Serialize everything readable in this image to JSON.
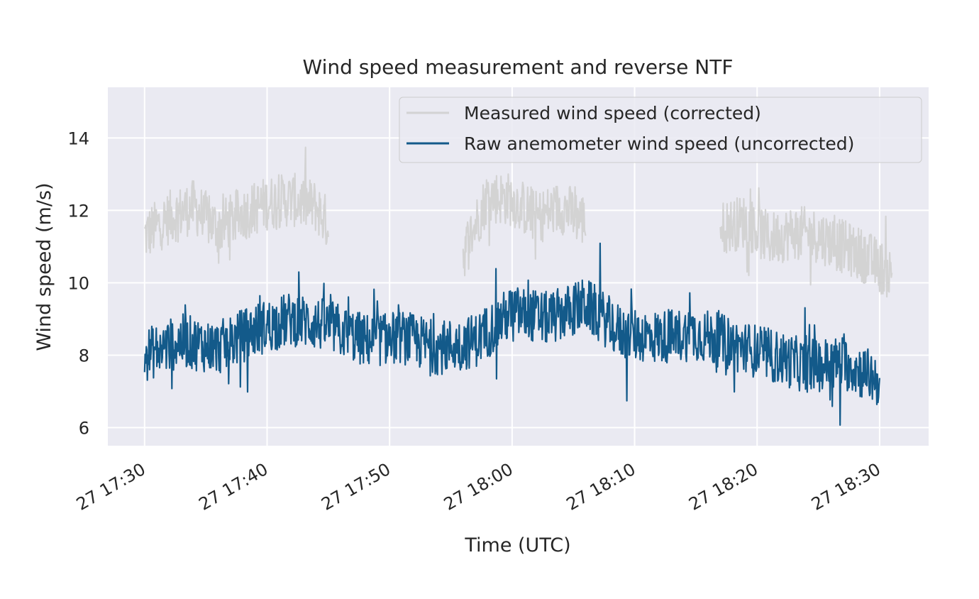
{
  "chart_data": {
    "type": "line",
    "title": "Wind speed measurement and reverse NTF",
    "xlabel": "Time (UTC)",
    "ylabel": "Wind speed (m/s)",
    "x_range": [
      "27 17:27",
      "27 18:34"
    ],
    "ylim": [
      5.5,
      15.4
    ],
    "x_ticks": [
      "27 17:30",
      "27 17:40",
      "27 17:50",
      "27 18:00",
      "27 18:10",
      "27 18:20",
      "27 18:30"
    ],
    "y_ticks": [
      6,
      8,
      10,
      12,
      14
    ],
    "grid": true,
    "legend_position": "upper right",
    "background": "#eaeaf2",
    "series": [
      {
        "name": "Measured wind speed (corrected)",
        "color": "#d3d3d3",
        "segments": [
          {
            "x": [
              "27 17:30",
              "27 17:32",
              "27 17:34",
              "27 17:36",
              "27 17:38",
              "27 17:40",
              "27 17:42",
              "27 17:44",
              "27 17:45"
            ],
            "y": [
              11.3,
              11.8,
              12.1,
              11.5,
              11.9,
              12.2,
              12.3,
              12.1,
              11.6
            ]
          },
          {
            "x": [
              "27 17:56",
              "27 17:58",
              "27 18:00",
              "27 18:02",
              "27 18:04",
              "27 18:06"
            ],
            "y": [
              10.8,
              12.4,
              12.3,
              11.8,
              12.1,
              11.7
            ]
          },
          {
            "x": [
              "27 18:17",
              "27 18:19",
              "27 18:21",
              "27 18:23",
              "27 18:25",
              "27 18:27",
              "27 18:29",
              "27 18:31"
            ],
            "y": [
              11.5,
              11.7,
              11.2,
              11.4,
              11.3,
              11.0,
              10.7,
              10.2
            ]
          }
        ]
      },
      {
        "name": "Raw anemometer wind speed (uncorrected)",
        "color": "#135a8a",
        "x": [
          "27 17:30",
          "27 17:33",
          "27 17:36",
          "27 17:39",
          "27 17:42",
          "27 17:45",
          "27 17:48",
          "27 17:51",
          "27 17:54",
          "27 17:57",
          "27 18:00",
          "27 18:03",
          "27 18:06",
          "27 18:09",
          "27 18:12",
          "27 18:15",
          "27 18:18",
          "27 18:21",
          "27 18:24",
          "27 18:27",
          "27 18:30"
        ],
        "y": [
          8.0,
          8.4,
          8.2,
          8.7,
          9.0,
          8.8,
          8.4,
          8.5,
          8.2,
          8.4,
          9.2,
          9.0,
          9.4,
          8.6,
          8.5,
          8.6,
          8.3,
          8.0,
          7.7,
          7.8,
          7.3
        ]
      }
    ]
  }
}
